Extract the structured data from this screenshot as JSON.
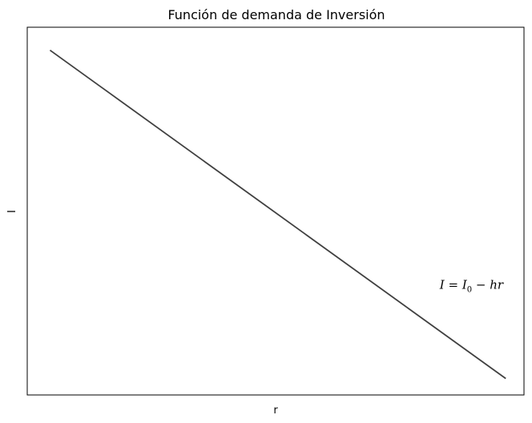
{
  "chart_data": {
    "type": "line",
    "title": "Función de demanda de Inversión",
    "xlabel": "r",
    "ylabel": "I",
    "xticks": [],
    "yticks": [],
    "grid": false,
    "series": [
      {
        "x": [
          0,
          10
        ],
        "y": [
          10,
          0
        ],
        "color": "#404040"
      }
    ],
    "xlim": [
      -0.5,
      10.4
    ],
    "ylim": [
      -0.5,
      10.7
    ],
    "annotation": {
      "text": "I = I₀ − hr",
      "x": 8.55,
      "y": 2.85
    }
  }
}
